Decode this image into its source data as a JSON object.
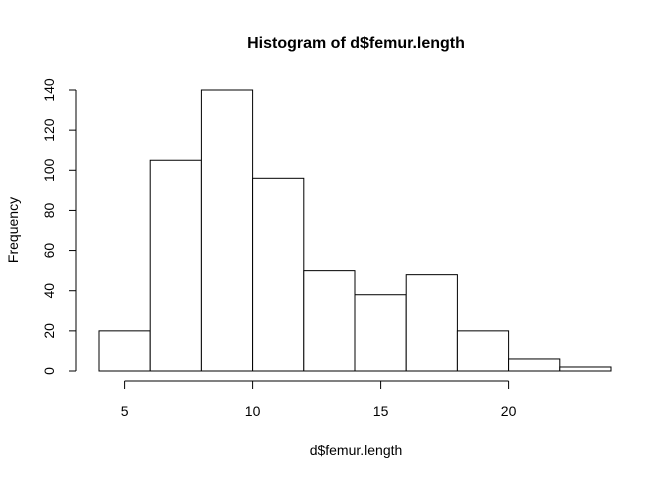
{
  "chart_data": {
    "type": "bar",
    "title": "Histogram of d$femur.length",
    "xlabel": "d$femur.length",
    "ylabel": "Frequency",
    "bins": [
      {
        "start": 4,
        "end": 6,
        "count": 20
      },
      {
        "start": 6,
        "end": 8,
        "count": 105
      },
      {
        "start": 8,
        "end": 10,
        "count": 140
      },
      {
        "start": 10,
        "end": 12,
        "count": 96
      },
      {
        "start": 12,
        "end": 14,
        "count": 50
      },
      {
        "start": 14,
        "end": 16,
        "count": 38
      },
      {
        "start": 16,
        "end": 18,
        "count": 48
      },
      {
        "start": 18,
        "end": 20,
        "count": 20
      },
      {
        "start": 20,
        "end": 22,
        "count": 6
      },
      {
        "start": 22,
        "end": 24,
        "count": 2
      }
    ],
    "xlim": [
      4,
      24
    ],
    "ylim": [
      0,
      140
    ],
    "x_ticks": [
      5,
      10,
      15,
      20
    ],
    "y_ticks": [
      0,
      20,
      40,
      60,
      80,
      100,
      120,
      140
    ],
    "bar_fill": "#ffffff",
    "bar_stroke": "#000000",
    "grid": false,
    "legend": "none"
  }
}
